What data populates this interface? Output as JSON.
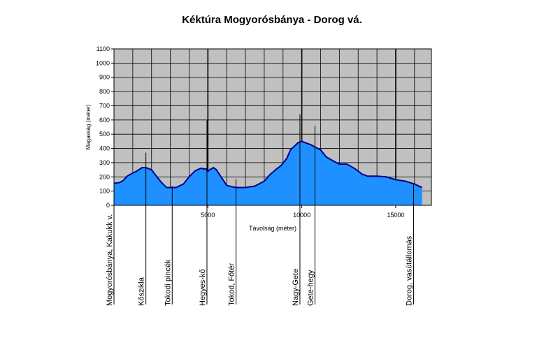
{
  "chart_data": {
    "type": "area",
    "title": "Kéktúra Mogyorósbánya - Dorog vá.",
    "xlabel": "Távolság (méter)",
    "ylabel": "Magasság (méter)",
    "xlim": [
      0,
      16900
    ],
    "ylim": [
      0,
      1100
    ],
    "x_ticks": [
      5000,
      10000,
      15000
    ],
    "y_ticks": [
      0,
      100,
      200,
      300,
      400,
      500,
      600,
      700,
      800,
      900,
      1000,
      1100
    ],
    "grid": true,
    "fill_color": "#1e90ff",
    "line_color": "#00008b",
    "plot_background": "#c0c0c0",
    "series": [
      {
        "x": [
          0,
          300,
          500,
          700,
          900,
          1200,
          1500,
          1700,
          2000,
          2200,
          2500,
          2800,
          3000,
          3300,
          3700,
          4000,
          4300,
          4600,
          4900,
          5000,
          5150,
          5300,
          5450,
          5700,
          6000,
          6300,
          6500,
          7000,
          7500,
          8000,
          8300,
          8600,
          8900,
          9200,
          9400,
          9600,
          9800,
          10000,
          10100,
          10300,
          10500,
          10700,
          11000,
          11300,
          11700,
          12000,
          12400,
          12800,
          13200,
          13500,
          14000,
          14500,
          15000,
          15500,
          16000,
          16400
        ],
        "y": [
          155,
          160,
          175,
          205,
          220,
          240,
          265,
          265,
          250,
          215,
          165,
          125,
          125,
          125,
          150,
          200,
          240,
          260,
          255,
          240,
          255,
          265,
          250,
          200,
          140,
          130,
          125,
          125,
          135,
          170,
          215,
          250,
          280,
          330,
          390,
          415,
          440,
          450,
          445,
          435,
          425,
          410,
          390,
          340,
          310,
          290,
          290,
          260,
          220,
          205,
          205,
          200,
          180,
          170,
          150,
          125
        ]
      }
    ],
    "waypoints": [
      {
        "name": "Mogyorósbánya, Kakukk v.",
        "x": 0,
        "top": 110
      },
      {
        "name": "Kőszikla",
        "x": 1700,
        "top": 370
      },
      {
        "name": "Tokodi pincék",
        "x": 3100,
        "top": 135
      },
      {
        "name": "Hegyes-kő",
        "x": 4950,
        "top": 600
      },
      {
        "name": "Tokod, Főtér",
        "x": 6500,
        "top": 185
      },
      {
        "name": "Nagy-Gete",
        "x": 9900,
        "top": 640
      },
      {
        "name": "Gete-hegy",
        "x": 10700,
        "top": 560
      },
      {
        "name": "Dorog, vasútállomás",
        "x": 15950,
        "top": 155
      }
    ]
  }
}
